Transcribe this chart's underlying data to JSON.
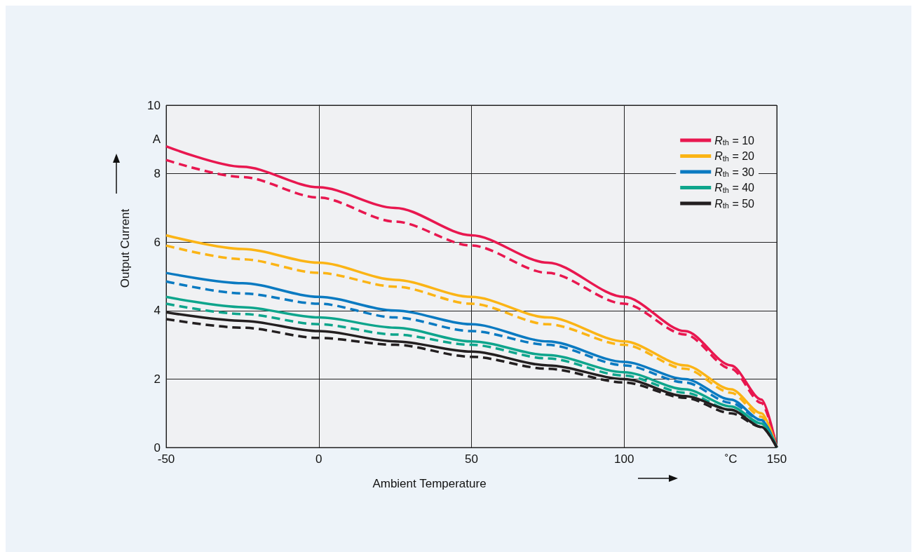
{
  "chart_data": {
    "type": "line",
    "xlabel": "Ambient Temperature",
    "ylabel": "Output Current",
    "x": [
      -50,
      -25,
      0,
      25,
      50,
      75,
      100,
      120,
      135,
      145,
      150
    ],
    "series": [
      {
        "name": "R$_{th}$ = 10",
        "color": "#e8174f",
        "line_style": "solid",
        "values": [
          8.8,
          8.2,
          7.6,
          7.0,
          6.2,
          5.4,
          4.4,
          3.4,
          2.4,
          1.4,
          0
        ]
      },
      {
        "color": "#e8174f",
        "line_style": "dashed",
        "values": [
          8.4,
          7.9,
          7.3,
          6.6,
          5.9,
          5.1,
          4.2,
          3.3,
          2.3,
          1.3,
          0
        ]
      },
      {
        "name": "R$_{th}$ = 20",
        "color": "#fbb415",
        "line_style": "solid",
        "values": [
          6.2,
          5.8,
          5.4,
          4.9,
          4.4,
          3.8,
          3.1,
          2.4,
          1.7,
          1.0,
          0
        ]
      },
      {
        "color": "#fbb415",
        "line_style": "dashed",
        "values": [
          5.9,
          5.5,
          5.1,
          4.7,
          4.2,
          3.6,
          3.0,
          2.3,
          1.6,
          0.9,
          0
        ]
      },
      {
        "name": "R$_{th}$ = 30",
        "color": "#0a7ac1",
        "line_style": "solid",
        "values": [
          5.1,
          4.8,
          4.4,
          4.0,
          3.6,
          3.1,
          2.5,
          2.0,
          1.4,
          0.8,
          0
        ]
      },
      {
        "color": "#0a7ac1",
        "line_style": "dashed",
        "values": [
          4.85,
          4.5,
          4.2,
          3.8,
          3.4,
          3.0,
          2.4,
          1.9,
          1.3,
          0.8,
          0
        ]
      },
      {
        "name": "R$_{th}$ = 40",
        "color": "#0ea58c",
        "line_style": "solid",
        "values": [
          4.4,
          4.1,
          3.8,
          3.5,
          3.1,
          2.7,
          2.2,
          1.7,
          1.2,
          0.7,
          0
        ]
      },
      {
        "color": "#0ea58c",
        "line_style": "dashed",
        "values": [
          4.2,
          3.9,
          3.6,
          3.3,
          3.0,
          2.6,
          2.1,
          1.6,
          1.1,
          0.7,
          0
        ]
      },
      {
        "name": "R$_{th}$ = 50",
        "color": "#231f20",
        "line_style": "solid",
        "values": [
          3.95,
          3.7,
          3.4,
          3.1,
          2.8,
          2.4,
          2.0,
          1.5,
          1.1,
          0.6,
          0
        ]
      },
      {
        "color": "#231f20",
        "line_style": "dashed",
        "values": [
          3.75,
          3.5,
          3.2,
          3.0,
          2.65,
          2.3,
          1.9,
          1.45,
          1.0,
          0.6,
          0
        ]
      }
    ],
    "xlim": [
      -50,
      150
    ],
    "xticks": [
      -50,
      0,
      50,
      100,
      {
        "value": 135,
        "label": "˚C"
      },
      150
    ],
    "ylim": [
      0,
      10
    ],
    "yticks": [
      0,
      2,
      4,
      6,
      8,
      {
        "value": 9,
        "label": "A"
      },
      10
    ],
    "grid": true,
    "legend": "top right",
    "marker": "none"
  }
}
